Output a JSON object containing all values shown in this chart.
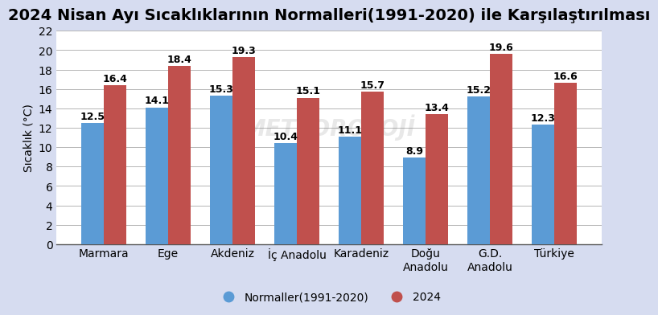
{
  "title": "2024 Nisan Ayı Sıcaklıklarının Normalleri(1991-2020) ile Karşılaştırılması",
  "ylabel": "Sıcaklık (°C)",
  "categories": [
    "Marmara",
    "Ege",
    "Akdeniz",
    "İç Anadolu",
    "Karadeniz",
    "Doğu\nAnadolu",
    "G.D.\nAnadolu",
    "Türkiye"
  ],
  "normals": [
    12.5,
    14.1,
    15.3,
    10.4,
    11.1,
    8.9,
    15.2,
    12.3
  ],
  "values_2024": [
    16.4,
    18.4,
    19.3,
    15.1,
    15.7,
    13.4,
    19.6,
    16.6
  ],
  "color_normal": "#5B9BD5",
  "color_2024": "#C0504D",
  "fig_background_color": "#D6DCF0",
  "plot_background_color": "#FFFFFF",
  "ylim": [
    0,
    22
  ],
  "yticks": [
    0,
    2,
    4,
    6,
    8,
    10,
    12,
    14,
    16,
    18,
    20,
    22
  ],
  "legend_normal": "Normaller(1991-2020)",
  "legend_2024": "2024",
  "bar_width": 0.35,
  "title_fontsize": 14,
  "label_fontsize": 10,
  "tick_fontsize": 10,
  "value_fontsize": 9,
  "watermark_text": "METEOROLOJİ",
  "watermark_alpha": 0.18
}
